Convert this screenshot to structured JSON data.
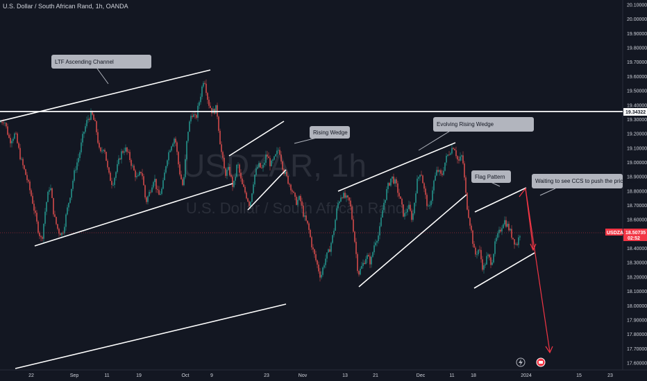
{
  "header": {
    "title": "U.S. Dollar / South African Rand, 1h, OANDA"
  },
  "watermark": {
    "symbol": "USDZAR, 1h",
    "name": "U.S. Dollar / South African Rand"
  },
  "colors": {
    "background": "#131722",
    "up_candle": "#26a69a",
    "down_candle": "#ef5350",
    "drawing": "#ffffff",
    "projection_arrow": "#f23645",
    "callout_bg": "#b2b5be",
    "last_price_bg": "#f23645"
  },
  "price_labels": {
    "hline_price": "19.34322",
    "last_symbol": "USDZAR",
    "last_price": "18.50735",
    "countdown": "02:52"
  },
  "annotations": [
    "LTF Ascending Channel",
    "Rising Wedge",
    "Evolving Rising Wedge",
    "Flag Pattern",
    "Waiting to see CCS to push the price dow"
  ],
  "icons": [
    "lightning-icon",
    "earnings-icon"
  ],
  "chart_data": {
    "type": "candlestick",
    "title": "U.S. Dollar / South African Rand, 1h, OANDA",
    "ylim": [
      17.55,
      20.1
    ],
    "y_ticks": [
      "20.10000",
      "20.00000",
      "19.90000",
      "19.80000",
      "19.70000",
      "19.60000",
      "19.50000",
      "19.40000",
      "19.30000",
      "19.20000",
      "19.10000",
      "19.00000",
      "18.90000",
      "18.80000",
      "18.70000",
      "18.60000",
      "18.50000",
      "18.40000",
      "18.30000",
      "18.20000",
      "18.10000",
      "18.00000",
      "17.90000",
      "17.80000",
      "17.70000",
      "17.60000"
    ],
    "x_ticks": [
      "22",
      "Sep",
      "11",
      "19",
      "Oct",
      "9",
      "23",
      "Nov",
      "13",
      "21",
      "Dec",
      "11",
      "18",
      "2024",
      "15",
      "23"
    ],
    "price_path": [
      [
        0,
        19.28
      ],
      [
        6,
        19.3
      ],
      [
        14,
        19.15
      ],
      [
        22,
        19.2
      ],
      [
        30,
        19.02
      ],
      [
        38,
        18.9
      ],
      [
        46,
        18.75
      ],
      [
        54,
        18.55
      ],
      [
        60,
        18.45
      ],
      [
        66,
        18.7
      ],
      [
        72,
        18.85
      ],
      [
        78,
        18.62
      ],
      [
        84,
        18.52
      ],
      [
        90,
        18.5
      ],
      [
        96,
        18.65
      ],
      [
        102,
        18.8
      ],
      [
        108,
        18.95
      ],
      [
        114,
        19.05
      ],
      [
        120,
        19.2
      ],
      [
        126,
        19.3
      ],
      [
        132,
        19.34
      ],
      [
        138,
        19.25
      ],
      [
        144,
        19.05
      ],
      [
        150,
        19.12
      ],
      [
        156,
        18.92
      ],
      [
        162,
        18.85
      ],
      [
        168,
        18.95
      ],
      [
        174,
        19.06
      ],
      [
        180,
        19.1
      ],
      [
        186,
        19.04
      ],
      [
        192,
        18.95
      ],
      [
        198,
        18.88
      ],
      [
        204,
        18.95
      ],
      [
        210,
        18.72
      ],
      [
        216,
        18.8
      ],
      [
        222,
        18.9
      ],
      [
        228,
        18.76
      ],
      [
        234,
        18.82
      ],
      [
        240,
        19.02
      ],
      [
        246,
        19.12
      ],
      [
        252,
        19.18
      ],
      [
        258,
        18.95
      ],
      [
        264,
        18.82
      ],
      [
        270,
        19.2
      ],
      [
        276,
        19.35
      ],
      [
        282,
        19.3
      ],
      [
        288,
        19.45
      ],
      [
        294,
        19.6
      ],
      [
        300,
        19.42
      ],
      [
        306,
        19.35
      ],
      [
        312,
        19.38
      ],
      [
        318,
        19.1
      ],
      [
        324,
        18.92
      ],
      [
        330,
        18.95
      ],
      [
        336,
        18.82
      ],
      [
        342,
        19.0
      ],
      [
        348,
        18.85
      ],
      [
        354,
        18.78
      ],
      [
        360,
        18.7
      ],
      [
        366,
        18.9
      ],
      [
        372,
        18.98
      ],
      [
        378,
        18.95
      ],
      [
        384,
        19.06
      ],
      [
        390,
        18.98
      ],
      [
        396,
        19.03
      ],
      [
        402,
        19.1
      ],
      [
        408,
        18.95
      ],
      [
        414,
        18.88
      ],
      [
        420,
        18.82
      ],
      [
        426,
        18.72
      ],
      [
        432,
        18.75
      ],
      [
        438,
        18.62
      ],
      [
        444,
        18.55
      ],
      [
        450,
        18.4
      ],
      [
        456,
        18.3
      ],
      [
        462,
        18.2
      ],
      [
        468,
        18.32
      ],
      [
        474,
        18.38
      ],
      [
        480,
        18.5
      ],
      [
        486,
        18.7
      ],
      [
        492,
        18.78
      ],
      [
        498,
        18.75
      ],
      [
        504,
        18.72
      ],
      [
        510,
        18.5
      ],
      [
        516,
        18.22
      ],
      [
        522,
        18.28
      ],
      [
        528,
        18.35
      ],
      [
        534,
        18.3
      ],
      [
        540,
        18.45
      ],
      [
        546,
        18.5
      ],
      [
        552,
        18.7
      ],
      [
        558,
        18.82
      ],
      [
        564,
        18.9
      ],
      [
        570,
        18.85
      ],
      [
        576,
        18.75
      ],
      [
        582,
        18.62
      ],
      [
        588,
        18.7
      ],
      [
        594,
        18.6
      ],
      [
        600,
        18.85
      ],
      [
        606,
        18.95
      ],
      [
        612,
        18.78
      ],
      [
        618,
        18.65
      ],
      [
        624,
        18.85
      ],
      [
        630,
        18.95
      ],
      [
        636,
        18.9
      ],
      [
        642,
        19.02
      ],
      [
        648,
        19.08
      ],
      [
        654,
        19.12
      ],
      [
        660,
        19.0
      ],
      [
        666,
        19.05
      ],
      [
        672,
        18.72
      ],
      [
        678,
        18.55
      ],
      [
        684,
        18.35
      ],
      [
        690,
        18.4
      ],
      [
        696,
        18.25
      ],
      [
        702,
        18.35
      ],
      [
        708,
        18.3
      ],
      [
        714,
        18.45
      ],
      [
        720,
        18.52
      ],
      [
        726,
        18.6
      ],
      [
        732,
        18.55
      ],
      [
        738,
        18.48
      ],
      [
        744,
        18.42
      ],
      [
        750,
        18.52
      ]
    ],
    "horizontal_line": 19.34322,
    "last_price": 18.50735
  }
}
